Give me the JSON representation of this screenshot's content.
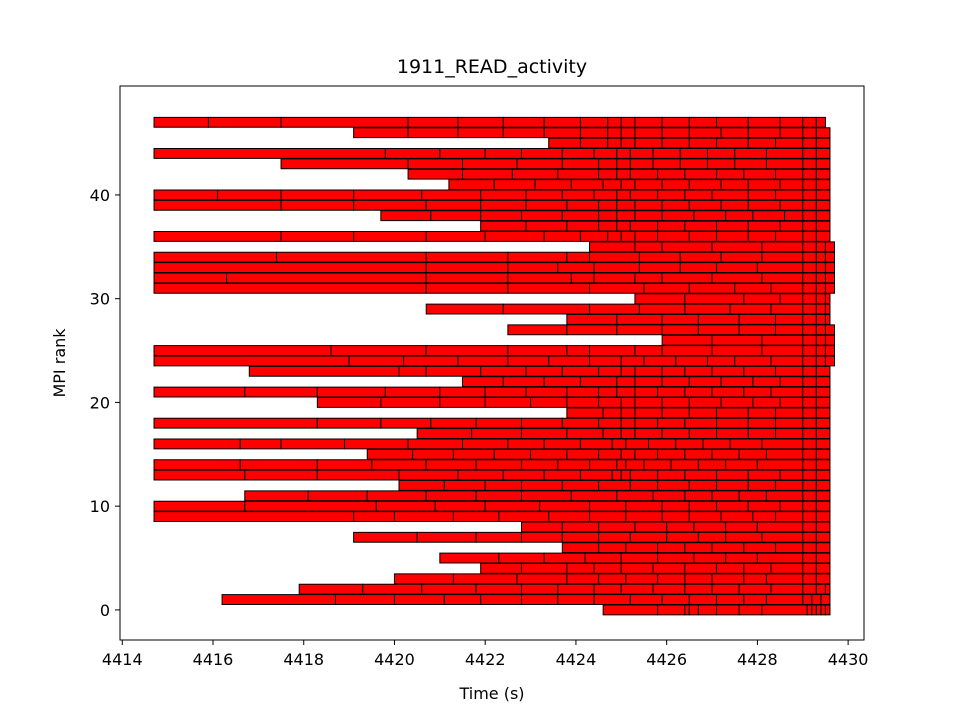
{
  "chart_data": {
    "type": "bar",
    "orientation": "horizontal-intervals",
    "title": "1911_READ_activity",
    "xlabel": "Time (s)",
    "ylabel": "MPI rank",
    "xlim": [
      4413.95,
      4430.35
    ],
    "ylim": [
      -2.9,
      50.5
    ],
    "xticks": [
      4414,
      4416,
      4418,
      4420,
      4422,
      4424,
      4426,
      4428,
      4430
    ],
    "yticks": [
      0,
      10,
      20,
      30,
      40
    ],
    "bar_color": "#ff0000",
    "edge_color": "#000000",
    "ranks": [
      {
        "rank": 0,
        "start": 4424.6,
        "boundaries": [
          4425.8,
          4426.4,
          4426.5,
          4426.7,
          4427.1,
          4427.6,
          4428.1,
          4429.1,
          4429.2,
          4429.3,
          4429.4,
          4429.5
        ],
        "end": 4429.6
      },
      {
        "rank": 1,
        "start": 4416.2,
        "boundaries": [
          4418.7,
          4420.0,
          4421.1,
          4421.9,
          4422.8,
          4423.6,
          4424.4,
          4425.2,
          4425.9,
          4426.5,
          4427.1,
          4427.7,
          4428.2,
          4429.0,
          4429.2,
          4429.4
        ],
        "end": 4429.6
      },
      {
        "rank": 2,
        "start": 4417.9,
        "boundaries": [
          4419.3,
          4420.6,
          4421.8,
          4422.8,
          4423.6,
          4424.4,
          4425.0,
          4425.7,
          4426.4,
          4427.0,
          4427.6,
          4428.3,
          4429.0,
          4429.3,
          4429.5
        ],
        "end": 4429.6
      },
      {
        "rank": 3,
        "start": 4420.0,
        "boundaries": [
          4421.3,
          4422.7,
          4423.8,
          4424.5,
          4425.1,
          4425.8,
          4426.4,
          4427.0,
          4427.7,
          4428.2,
          4429.0,
          4429.3
        ],
        "end": 4429.6
      },
      {
        "rank": 4,
        "start": 4421.9,
        "boundaries": [
          4422.8,
          4423.8,
          4424.4,
          4425.0,
          4425.7,
          4426.4,
          4427.1,
          4427.7,
          4428.3,
          4429.0,
          4429.3
        ],
        "end": 4429.6
      },
      {
        "rank": 5,
        "start": 4421.0,
        "boundaries": [
          4422.3,
          4423.3,
          4424.2,
          4425.0,
          4425.8,
          4426.6,
          4427.3,
          4428.0,
          4429.0,
          4429.3
        ],
        "end": 4429.6
      },
      {
        "rank": 6,
        "start": 4423.7,
        "boundaries": [
          4424.5,
          4425.1,
          4425.8,
          4426.4,
          4427.0,
          4427.7,
          4428.4,
          4429.0,
          4429.3
        ],
        "end": 4429.6
      },
      {
        "rank": 7,
        "start": 4419.1,
        "boundaries": [
          4420.5,
          4421.8,
          4422.8,
          4423.7,
          4424.5,
          4425.2,
          4426.0,
          4426.7,
          4427.3,
          4428.1,
          4429.0,
          4429.3
        ],
        "end": 4429.6
      },
      {
        "rank": 8,
        "start": 4422.8,
        "boundaries": [
          4423.7,
          4424.5,
          4425.3,
          4426.0,
          4426.6,
          4427.3,
          4428.0,
          4429.0,
          4429.3
        ],
        "end": 4429.6
      },
      {
        "rank": 9,
        "start": 4414.7,
        "boundaries": [
          4419.1,
          4420.0,
          4421.3,
          4422.3,
          4423.4,
          4424.3,
          4425.1,
          4425.9,
          4426.5,
          4427.2,
          4427.9,
          4428.4,
          4429.0,
          4429.3
        ],
        "end": 4429.6
      },
      {
        "rank": 10,
        "start": 4414.7,
        "boundaries": [
          4416.7,
          4419.6,
          4420.9,
          4422.0,
          4423.2,
          4424.3,
          4425.1,
          4425.9,
          4426.5,
          4427.1,
          4427.8,
          4428.5,
          4429.0,
          4429.3
        ],
        "end": 4429.6
      },
      {
        "rank": 11,
        "start": 4416.7,
        "boundaries": [
          4418.1,
          4419.4,
          4420.7,
          4421.8,
          4422.8,
          4423.9,
          4424.9,
          4425.7,
          4426.4,
          4427.0,
          4427.6,
          4428.2,
          4429.0,
          4429.3
        ],
        "end": 4429.6
      },
      {
        "rank": 12,
        "start": 4420.1,
        "boundaries": [
          4421.1,
          4422.0,
          4422.8,
          4423.7,
          4424.5,
          4425.2,
          4425.8,
          4426.5,
          4427.1,
          4427.8,
          4428.4,
          4429.0,
          4429.3
        ],
        "end": 4429.6
      },
      {
        "rank": 13,
        "start": 4414.7,
        "boundaries": [
          4416.7,
          4418.3,
          4420.1,
          4421.4,
          4422.4,
          4423.3,
          4424.1,
          4424.8,
          4425.0,
          4425.2,
          4425.8,
          4426.4,
          4427.1,
          4427.8,
          4428.5,
          4429.0,
          4429.3
        ],
        "end": 4429.6
      },
      {
        "rank": 14,
        "start": 4414.7,
        "boundaries": [
          4416.6,
          4418.3,
          4419.5,
          4420.7,
          4421.8,
          4422.8,
          4423.6,
          4424.3,
          4424.9,
          4425.1,
          4425.5,
          4426.1,
          4426.7,
          4427.3,
          4428.0,
          4429.0,
          4429.3
        ],
        "end": 4429.6
      },
      {
        "rank": 15,
        "start": 4419.4,
        "boundaries": [
          4420.4,
          4421.3,
          4422.2,
          4423.0,
          4423.8,
          4424.5,
          4425.0,
          4425.3,
          4425.8,
          4426.4,
          4427.0,
          4427.6,
          4428.2,
          4429.0,
          4429.3
        ],
        "end": 4429.6
      },
      {
        "rank": 16,
        "start": 4414.7,
        "boundaries": [
          4416.6,
          4417.5,
          4418.9,
          4420.3,
          4421.5,
          4422.5,
          4423.3,
          4424.1,
          4424.8,
          4425.1,
          4425.6,
          4426.2,
          4426.8,
          4427.4,
          4428.1,
          4429.0,
          4429.3
        ],
        "end": 4429.6
      },
      {
        "rank": 17,
        "start": 4420.5,
        "boundaries": [
          4421.7,
          4422.8,
          4423.8,
          4424.6,
          4425.0,
          4425.3,
          4425.9,
          4426.5,
          4427.1,
          4427.8,
          4428.4,
          4429.0,
          4429.3
        ],
        "end": 4429.6
      },
      {
        "rank": 18,
        "start": 4414.7,
        "boundaries": [
          4418.3,
          4419.7,
          4420.8,
          4421.8,
          4422.8,
          4423.7,
          4424.5,
          4425.0,
          4425.3,
          4425.8,
          4426.4,
          4427.1,
          4427.8,
          4428.4,
          4429.0,
          4429.3
        ],
        "end": 4429.6
      },
      {
        "rank": 19,
        "start": 4423.8,
        "boundaries": [
          4424.6,
          4425.0,
          4425.3,
          4425.9,
          4426.5,
          4427.1,
          4427.8,
          4428.4,
          4429.0,
          4429.3
        ],
        "end": 4429.6
      },
      {
        "rank": 20,
        "start": 4418.3,
        "boundaries": [
          4419.7,
          4421.0,
          4422.0,
          4423.0,
          4423.8,
          4424.5,
          4425.0,
          4425.3,
          4425.9,
          4426.5,
          4427.2,
          4427.9,
          4428.5,
          4429.0,
          4429.3
        ],
        "end": 4429.6
      },
      {
        "rank": 21,
        "start": 4414.7,
        "boundaries": [
          4416.7,
          4418.3,
          4419.8,
          4421.0,
          4422.0,
          4422.9,
          4423.8,
          4424.5,
          4424.9,
          4425.3,
          4425.8,
          4426.4,
          4427.0,
          4427.7,
          4428.3,
          4429.0,
          4429.3
        ],
        "end": 4429.6
      },
      {
        "rank": 22,
        "start": 4421.5,
        "boundaries": [
          4422.4,
          4423.3,
          4424.1,
          4424.9,
          4425.3,
          4425.9,
          4426.5,
          4427.2,
          4427.9,
          4428.5,
          4429.0,
          4429.3
        ],
        "end": 4429.6
      },
      {
        "rank": 23,
        "start": 4416.8,
        "boundaries": [
          4420.1,
          4420.7,
          4421.9,
          4422.9,
          4423.7,
          4424.5,
          4425.0,
          4425.3,
          4425.9,
          4426.4,
          4427.0,
          4427.7,
          4428.4,
          4429.0,
          4429.3
        ],
        "end": 4429.6
      },
      {
        "rank": 24,
        "start": 4414.7,
        "boundaries": [
          4419.0,
          4420.2,
          4421.4,
          4422.5,
          4423.4,
          4424.3,
          4425.0,
          4425.5,
          4426.2,
          4426.9,
          4427.5,
          4428.3,
          4429.0,
          4429.3,
          4429.5
        ],
        "end": 4429.7
      },
      {
        "rank": 25,
        "start": 4414.7,
        "boundaries": [
          4418.6,
          4420.7,
          4422.5,
          4423.8,
          4424.3,
          4425.3,
          4425.9,
          4427.0,
          4428.1,
          4429.0,
          4429.3,
          4429.5
        ],
        "end": 4429.7
      },
      {
        "rank": 26,
        "start": 4425.9,
        "boundaries": [
          4427.0,
          4428.1,
          4429.0,
          4429.3,
          4429.5
        ],
        "end": 4429.7
      },
      {
        "rank": 27,
        "start": 4422.5,
        "boundaries": [
          4423.8,
          4424.9,
          4425.9,
          4426.7,
          4427.6,
          4428.4,
          4429.0,
          4429.3,
          4429.5
        ],
        "end": 4429.7
      },
      {
        "rank": 28,
        "start": 4423.8,
        "boundaries": [
          4424.9,
          4425.9,
          4426.7,
          4427.6,
          4428.4,
          4429.0,
          4429.3,
          4429.5
        ],
        "end": 4429.6
      },
      {
        "rank": 29,
        "start": 4420.7,
        "boundaries": [
          4422.4,
          4424.3,
          4425.4,
          4426.4,
          4427.4,
          4428.3,
          4429.0,
          4429.3,
          4429.5
        ],
        "end": 4429.6
      },
      {
        "rank": 30,
        "start": 4425.3,
        "boundaries": [
          4426.4,
          4427.7,
          4428.5,
          4429.0,
          4429.3,
          4429.5
        ],
        "end": 4429.6
      },
      {
        "rank": 31,
        "start": 4414.7,
        "boundaries": [
          4420.7,
          4422.5,
          4424.3,
          4425.5,
          4426.5,
          4427.5,
          4428.3,
          4429.0,
          4429.3,
          4429.5
        ],
        "end": 4429.7
      },
      {
        "rank": 32,
        "start": 4414.7,
        "boundaries": [
          4416.3,
          4420.7,
          4422.5,
          4423.9,
          4424.4,
          4425.3,
          4425.9,
          4427.0,
          4428.1,
          4429.0,
          4429.3,
          4429.5
        ],
        "end": 4429.7
      },
      {
        "rank": 33,
        "start": 4414.7,
        "boundaries": [
          4420.7,
          4422.5,
          4423.6,
          4424.4,
          4425.4,
          4426.3,
          4427.1,
          4428.0,
          4429.0,
          4429.3,
          4429.5
        ],
        "end": 4429.7
      },
      {
        "rank": 34,
        "start": 4414.7,
        "boundaries": [
          4417.4,
          4420.7,
          4422.5,
          4423.8,
          4424.3,
          4425.4,
          4426.3,
          4427.2,
          4428.1,
          4429.0,
          4429.3,
          4429.5
        ],
        "end": 4429.7
      },
      {
        "rank": 35,
        "start": 4424.3,
        "boundaries": [
          4425.3,
          4425.9,
          4427.0,
          4428.1,
          4429.0,
          4429.3,
          4429.5
        ],
        "end": 4429.7
      },
      {
        "rank": 36,
        "start": 4414.7,
        "boundaries": [
          4417.5,
          4419.1,
          4420.7,
          4422.0,
          4423.3,
          4424.1,
          4424.7,
          4425.0,
          4425.3,
          4425.8,
          4426.5,
          4427.1,
          4427.8,
          4428.4,
          4429.0,
          4429.3
        ],
        "end": 4429.6
      },
      {
        "rank": 37,
        "start": 4421.9,
        "boundaries": [
          4422.9,
          4423.8,
          4424.5,
          4424.9,
          4425.2,
          4425.8,
          4426.4,
          4427.1,
          4427.8,
          4428.5,
          4429.0,
          4429.3
        ],
        "end": 4429.6
      },
      {
        "rank": 38,
        "start": 4419.7,
        "boundaries": [
          4420.8,
          4421.9,
          4422.8,
          4423.7,
          4424.5,
          4424.9,
          4425.3,
          4425.9,
          4426.6,
          4427.3,
          4427.9,
          4428.6,
          4429.0,
          4429.3
        ],
        "end": 4429.6
      },
      {
        "rank": 39,
        "start": 4414.7,
        "boundaries": [
          4417.5,
          4419.1,
          4420.7,
          4421.9,
          4422.9,
          4423.8,
          4424.5,
          4424.9,
          4425.3,
          4425.9,
          4426.5,
          4427.2,
          4427.8,
          4428.5,
          4429.0,
          4429.3
        ],
        "end": 4429.6
      },
      {
        "rank": 40,
        "start": 4414.7,
        "boundaries": [
          4416.1,
          4417.5,
          4419.1,
          4420.6,
          4421.9,
          4422.9,
          4423.7,
          4424.4,
          4424.9,
          4425.2,
          4425.8,
          4426.4,
          4427.0,
          4427.8,
          4428.4,
          4429.0,
          4429.3
        ],
        "end": 4429.6
      },
      {
        "rank": 41,
        "start": 4421.2,
        "boundaries": [
          4422.2,
          4423.1,
          4423.9,
          4424.6,
          4425.0,
          4425.3,
          4425.9,
          4426.5,
          4427.2,
          4427.8,
          4428.5,
          4429.0,
          4429.3
        ],
        "end": 4429.6
      },
      {
        "rank": 42,
        "start": 4420.3,
        "boundaries": [
          4421.5,
          4422.6,
          4423.6,
          4424.5,
          4424.9,
          4425.2,
          4425.8,
          4426.4,
          4427.1,
          4427.7,
          4428.4,
          4429.0,
          4429.3
        ],
        "end": 4429.6
      },
      {
        "rank": 43,
        "start": 4417.5,
        "boundaries": [
          4420.3,
          4421.5,
          4422.7,
          4423.7,
          4424.5,
          4424.9,
          4425.2,
          4425.7,
          4426.3,
          4426.9,
          4427.5,
          4428.2,
          4429.0,
          4429.3
        ],
        "end": 4429.6
      },
      {
        "rank": 44,
        "start": 4414.7,
        "boundaries": [
          4419.8,
          4421.0,
          4422.0,
          4422.8,
          4423.7,
          4424.4,
          4424.9,
          4425.2,
          4425.7,
          4426.3,
          4426.9,
          4427.5,
          4428.2,
          4429.0,
          4429.3
        ],
        "end": 4429.6
      },
      {
        "rank": 45,
        "start": 4423.4,
        "boundaries": [
          4424.1,
          4424.7,
          4425.0,
          4425.3,
          4425.9,
          4426.5,
          4427.1,
          4427.8,
          4428.4,
          4429.0,
          4429.3
        ],
        "end": 4429.6
      },
      {
        "rank": 46,
        "start": 4419.1,
        "boundaries": [
          4420.3,
          4421.4,
          4422.4,
          4423.3,
          4424.1,
          4424.7,
          4425.0,
          4425.3,
          4425.9,
          4426.5,
          4427.2,
          4427.8,
          4428.5,
          4429.0,
          4429.3
        ],
        "end": 4429.6
      },
      {
        "rank": 47,
        "start": 4414.7,
        "boundaries": [
          4415.9,
          4417.5,
          4420.3,
          4421.4,
          4422.4,
          4423.3,
          4424.1,
          4424.7,
          4425.0,
          4425.3,
          4425.9,
          4426.5,
          4427.1,
          4427.8,
          4428.5,
          4429.0,
          4429.3
        ],
        "end": 4429.5
      }
    ]
  }
}
